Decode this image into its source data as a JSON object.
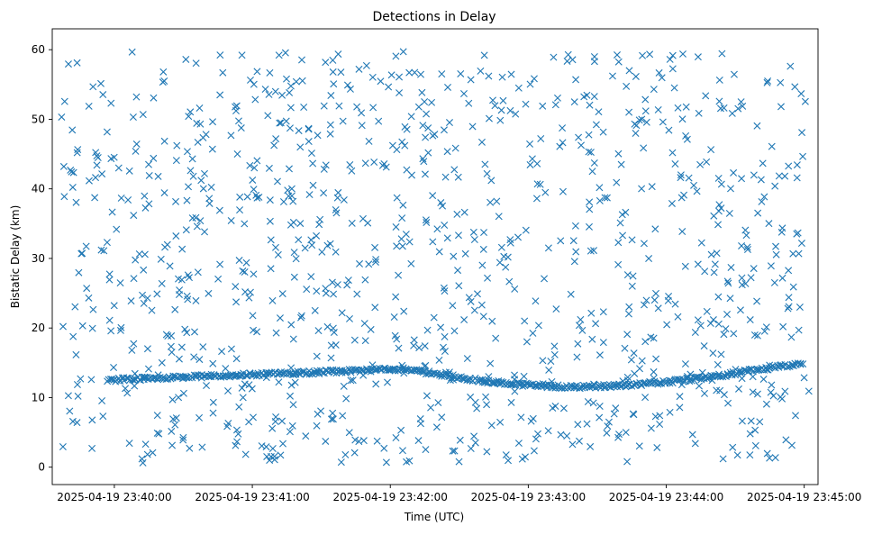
{
  "chart_data": {
    "type": "scatter",
    "title": "Detections in Delay",
    "xlabel": "Time (UTC)",
    "ylabel": "Bistatic Delay (km)",
    "marker": "x",
    "color": "#1f77b4",
    "xlim": [
      "2025-04-19 23:39:33",
      "2025-04-19 23:45:06"
    ],
    "ylim": [
      -2.5,
      63
    ],
    "x_ticks": [
      "2025-04-19 23:40:00",
      "2025-04-19 23:41:00",
      "2025-04-19 23:42:00",
      "2025-04-19 23:43:00",
      "2025-04-19 23:44:00",
      "2025-04-19 23:45:00"
    ],
    "y_ticks": [
      0,
      10,
      20,
      30,
      40,
      50,
      60
    ],
    "grid": false,
    "legend": "none",
    "x_range": [
      "2025-04-19 23:39:37",
      "2025-04-19 23:45:02"
    ],
    "y_range": [
      0.6,
      59.9
    ],
    "target_track": [
      {
        "time": "2025-04-19 23:39:57",
        "delay": 12.4
      },
      {
        "time": "2025-04-19 23:40:02",
        "delay": 12.6
      },
      {
        "time": "2025-04-19 23:42:05",
        "delay": 14.1
      },
      {
        "time": "2025-04-19 23:42:20",
        "delay": 13.4
      },
      {
        "time": "2025-04-19 23:42:40",
        "delay": 12.4
      },
      {
        "time": "2025-04-19 23:43:00",
        "delay": 11.8
      },
      {
        "time": "2025-04-19 23:43:20",
        "delay": 11.5
      },
      {
        "time": "2025-04-19 23:43:40",
        "delay": 11.7
      },
      {
        "time": "2025-04-19 23:44:00",
        "delay": 12.2
      },
      {
        "time": "2025-04-19 23:44:20",
        "delay": 13.0
      },
      {
        "time": "2025-04-19 23:44:40",
        "delay": 14.0
      },
      {
        "time": "2025-04-19 23:45:00",
        "delay": 15.0
      }
    ]
  }
}
